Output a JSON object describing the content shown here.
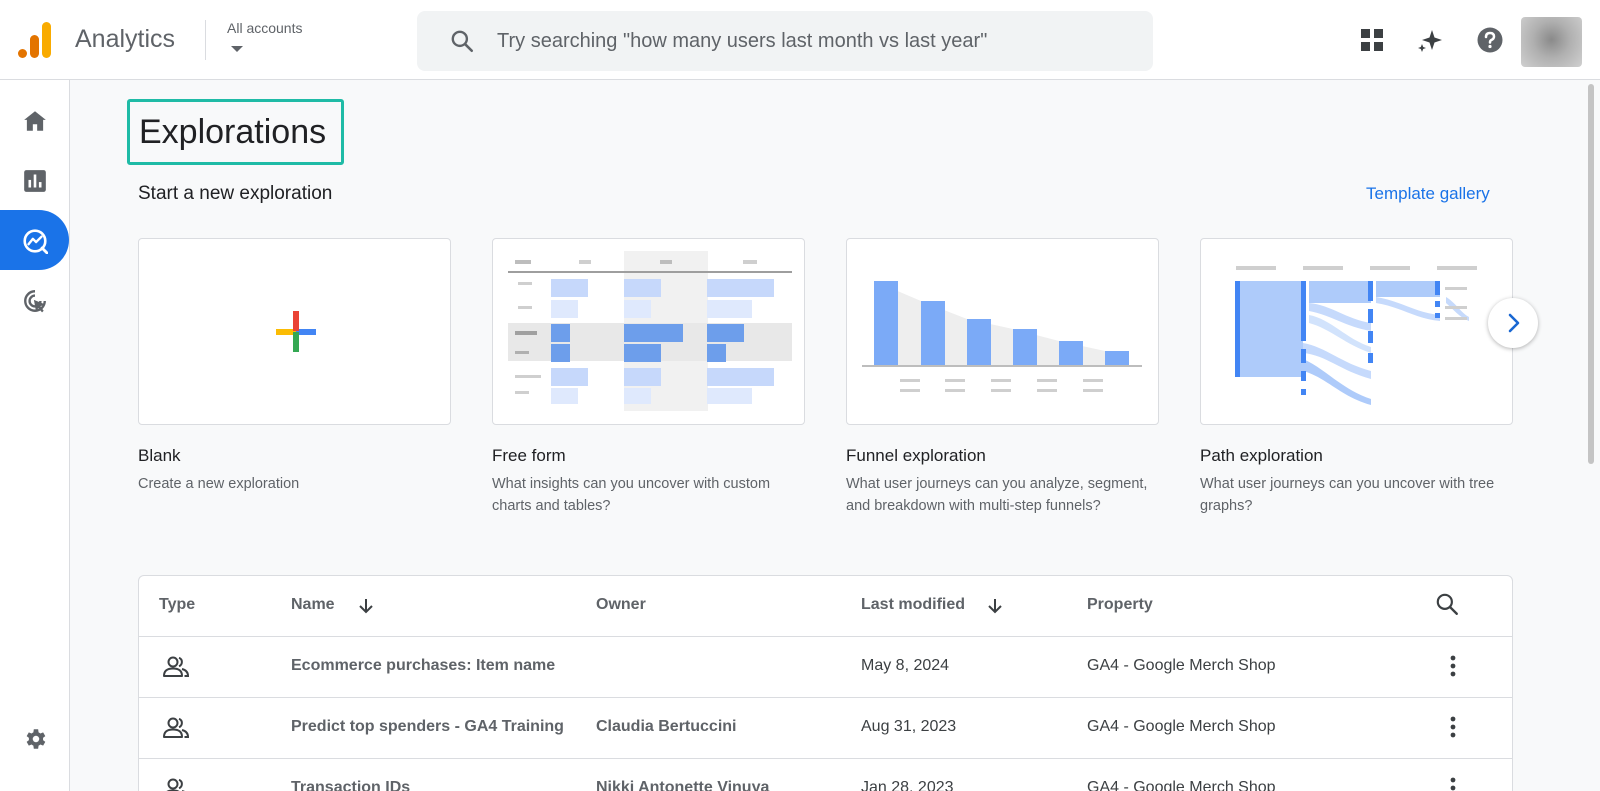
{
  "header": {
    "app_title": "Analytics",
    "accounts_label": "All accounts",
    "search_placeholder": "Try searching \"how many users last month vs last year\""
  },
  "nav": {
    "items": [
      {
        "name": "home",
        "icon": "home-icon"
      },
      {
        "name": "reports",
        "icon": "bar-chart-icon"
      },
      {
        "name": "explore",
        "icon": "explore-icon",
        "active": true
      },
      {
        "name": "advertising",
        "icon": "advertising-icon"
      }
    ],
    "settings_icon": "gear-icon"
  },
  "main": {
    "title": "Explorations",
    "subheading": "Start a new exploration",
    "template_link": "Template gallery",
    "cards": [
      {
        "title": "Blank",
        "desc": "Create a new exploration"
      },
      {
        "title": "Free form",
        "desc": "What insights can you uncover with custom charts and tables?"
      },
      {
        "title": "Funnel exploration",
        "desc": "What user journeys can you analyze, segment, and breakdown with multi-step funnels?"
      },
      {
        "title": "Path exploration",
        "desc": "What user journeys can you uncover with tree graphs?"
      }
    ]
  },
  "table": {
    "headers": {
      "type": "Type",
      "name": "Name",
      "owner": "Owner",
      "last_modified": "Last modified",
      "property": "Property"
    },
    "rows": [
      {
        "name": "Ecommerce purchases: Item name",
        "owner": "",
        "modified": "May 8, 2024",
        "property": "GA4 - Google Merch Shop"
      },
      {
        "name": "Predict top spenders - GA4 Training",
        "owner": "Claudia Bertuccini",
        "modified": "Aug 31, 2023",
        "property": "GA4 - Google Merch Shop"
      },
      {
        "name": "Transaction IDs",
        "owner": "Nikki Antonette Vinuya",
        "modified": "Jan 28, 2023",
        "property": "GA4 - Google Merch Shop"
      }
    ]
  },
  "colors": {
    "accent": "#1a73e8",
    "highlight": "#1fbba6",
    "logo_orange": "#f9ab00",
    "logo_dark_orange": "#e37400"
  }
}
